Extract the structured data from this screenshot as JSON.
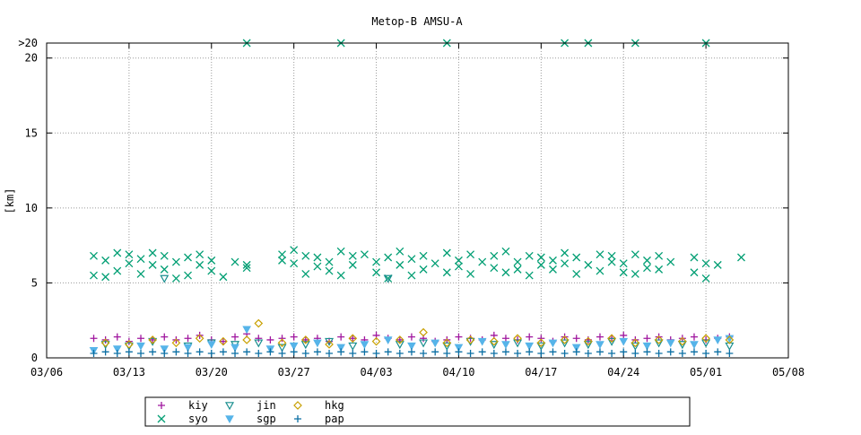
{
  "chart_data": {
    "type": "scatter",
    "title": "Metop-B AMSU-A",
    "xlabel": "",
    "ylabel": "[km]",
    "x_axis": {
      "type": "date",
      "range": [
        "03/06",
        "05/08"
      ],
      "tick_labels": [
        "03/06",
        "03/13",
        "03/20",
        "03/27",
        "04/03",
        "04/10",
        "04/17",
        "04/24",
        "05/01",
        "05/08"
      ]
    },
    "y_axis": {
      "range": [
        0,
        21
      ],
      "ticks": [
        0,
        5,
        10,
        15,
        20
      ],
      "tick_labels": [
        "0",
        "5",
        "10",
        "15",
        "20"
      ],
      "overflow_label": ">20"
    },
    "grid": true,
    "legend_position": "bottom",
    "series": [
      {
        "name": "kiy",
        "marker": "plus",
        "color": "#a0179f",
        "points": [
          [
            "03/10",
            1.3
          ],
          [
            "03/11",
            1.2
          ],
          [
            "03/12",
            1.4
          ],
          [
            "03/13",
            1.1
          ],
          [
            "03/14",
            1.3
          ],
          [
            "03/15",
            1.2
          ],
          [
            "03/16",
            1.4
          ],
          [
            "03/17",
            1.2
          ],
          [
            "03/18",
            1.3
          ],
          [
            "03/19",
            1.5
          ],
          [
            "03/20",
            1.2
          ],
          [
            "03/21",
            1.1
          ],
          [
            "03/22",
            1.4
          ],
          [
            "03/23",
            1.6
          ],
          [
            "03/24",
            1.3
          ],
          [
            "03/25",
            1.2
          ],
          [
            "03/26",
            1.3
          ],
          [
            "03/27",
            1.4
          ],
          [
            "03/28",
            1.2
          ],
          [
            "03/29",
            1.3
          ],
          [
            "03/30",
            1.1
          ],
          [
            "03/31",
            1.4
          ],
          [
            "04/01",
            1.3
          ],
          [
            "04/02",
            1.2
          ],
          [
            "04/03",
            1.5
          ],
          [
            "04/04",
            1.3
          ],
          [
            "04/05",
            1.2
          ],
          [
            "04/06",
            1.4
          ],
          [
            "04/07",
            1.3
          ],
          [
            "04/08",
            1.1
          ],
          [
            "04/09",
            1.2
          ],
          [
            "04/10",
            1.4
          ],
          [
            "04/11",
            1.3
          ],
          [
            "04/12",
            1.2
          ],
          [
            "04/13",
            1.5
          ],
          [
            "04/14",
            1.3
          ],
          [
            "04/15",
            1.2
          ],
          [
            "04/16",
            1.4
          ],
          [
            "04/17",
            1.3
          ],
          [
            "04/18",
            1.1
          ],
          [
            "04/19",
            1.4
          ],
          [
            "04/20",
            1.3
          ],
          [
            "04/21",
            1.2
          ],
          [
            "04/22",
            1.4
          ],
          [
            "04/23",
            1.3
          ],
          [
            "04/24",
            1.5
          ],
          [
            "04/25",
            1.2
          ],
          [
            "04/26",
            1.3
          ],
          [
            "04/27",
            1.4
          ],
          [
            "04/28",
            1.2
          ],
          [
            "04/29",
            1.3
          ],
          [
            "04/30",
            1.4
          ],
          [
            "05/01",
            1.2
          ],
          [
            "05/02",
            1.3
          ],
          [
            "05/03",
            1.4
          ]
        ]
      },
      {
        "name": "syo",
        "marker": "cross",
        "color": "#009e73",
        "points": [
          [
            "03/10",
            6.8
          ],
          [
            "03/10",
            5.5
          ],
          [
            "03/11",
            6.5
          ],
          [
            "03/11",
            5.4
          ],
          [
            "03/12",
            7.0
          ],
          [
            "03/12",
            5.8
          ],
          [
            "03/13",
            6.3
          ],
          [
            "03/13",
            6.9
          ],
          [
            "03/14",
            5.6
          ],
          [
            "03/14",
            6.6
          ],
          [
            "03/15",
            7.0
          ],
          [
            "03/15",
            6.2
          ],
          [
            "03/16",
            5.9
          ],
          [
            "03/16",
            6.8
          ],
          [
            "03/17",
            5.3
          ],
          [
            "03/17",
            6.4
          ],
          [
            "03/18",
            6.7
          ],
          [
            "03/18",
            5.5
          ],
          [
            "03/19",
            6.9
          ],
          [
            "03/19",
            6.2
          ],
          [
            "03/20",
            5.8
          ],
          [
            "03/20",
            6.5
          ],
          [
            "03/21",
            5.4
          ],
          [
            "03/22",
            6.4
          ],
          [
            "03/23",
            6.0
          ],
          [
            "03/23",
            6.2
          ],
          [
            "03/23",
            21
          ],
          [
            "03/26",
            6.9
          ],
          [
            "03/26",
            6.5
          ],
          [
            "03/27",
            7.2
          ],
          [
            "03/27",
            6.3
          ],
          [
            "03/28",
            5.6
          ],
          [
            "03/28",
            6.8
          ],
          [
            "03/29",
            6.1
          ],
          [
            "03/29",
            6.7
          ],
          [
            "03/30",
            5.8
          ],
          [
            "03/30",
            6.4
          ],
          [
            "03/31",
            7.1
          ],
          [
            "03/31",
            5.5
          ],
          [
            "03/31",
            21
          ],
          [
            "04/01",
            6.8
          ],
          [
            "04/01",
            6.2
          ],
          [
            "04/02",
            6.9
          ],
          [
            "04/03",
            5.7
          ],
          [
            "04/03",
            6.4
          ],
          [
            "04/04",
            6.7
          ],
          [
            "04/04",
            5.3
          ],
          [
            "04/05",
            7.1
          ],
          [
            "04/05",
            6.2
          ],
          [
            "04/06",
            5.5
          ],
          [
            "04/06",
            6.6
          ],
          [
            "04/07",
            6.8
          ],
          [
            "04/07",
            5.9
          ],
          [
            "04/08",
            6.3
          ],
          [
            "04/09",
            5.7
          ],
          [
            "04/09",
            7.0
          ],
          [
            "04/09",
            21
          ],
          [
            "04/10",
            6.5
          ],
          [
            "04/10",
            6.1
          ],
          [
            "04/11",
            6.9
          ],
          [
            "04/11",
            5.6
          ],
          [
            "04/12",
            6.4
          ],
          [
            "04/13",
            6.8
          ],
          [
            "04/13",
            6.0
          ],
          [
            "04/14",
            5.7
          ],
          [
            "04/14",
            7.1
          ],
          [
            "04/15",
            6.4
          ],
          [
            "04/15",
            5.9
          ],
          [
            "04/16",
            6.8
          ],
          [
            "04/16",
            5.5
          ],
          [
            "04/17",
            6.2
          ],
          [
            "04/17",
            6.7
          ],
          [
            "04/18",
            6.5
          ],
          [
            "04/18",
            5.9
          ],
          [
            "04/19",
            7.0
          ],
          [
            "04/19",
            6.3
          ],
          [
            "04/19",
            21
          ],
          [
            "04/20",
            5.6
          ],
          [
            "04/20",
            6.7
          ],
          [
            "04/21",
            6.2
          ],
          [
            "04/21",
            21
          ],
          [
            "04/22",
            6.9
          ],
          [
            "04/22",
            5.8
          ],
          [
            "04/23",
            6.4
          ],
          [
            "04/23",
            6.8
          ],
          [
            "04/24",
            5.7
          ],
          [
            "04/24",
            6.3
          ],
          [
            "04/25",
            6.9
          ],
          [
            "04/25",
            5.6
          ],
          [
            "04/25",
            21
          ],
          [
            "04/26",
            6.5
          ],
          [
            "04/26",
            6.0
          ],
          [
            "04/27",
            6.8
          ],
          [
            "04/27",
            5.9
          ],
          [
            "04/28",
            6.4
          ],
          [
            "04/30",
            6.7
          ],
          [
            "04/30",
            5.7
          ],
          [
            "05/01",
            6.3
          ],
          [
            "05/01",
            5.3
          ],
          [
            "05/01",
            21
          ],
          [
            "05/02",
            6.2
          ],
          [
            "05/04",
            6.7
          ]
        ]
      },
      {
        "name": "jin",
        "marker": "triangle-down-open",
        "color": "#1a8f8f",
        "points": [
          [
            "03/11",
            0.9
          ],
          [
            "03/13",
            0.8
          ],
          [
            "03/15",
            1.1
          ],
          [
            "03/16",
            5.3
          ],
          [
            "03/18",
            0.8
          ],
          [
            "03/20",
            1.0
          ],
          [
            "03/22",
            0.9
          ],
          [
            "03/24",
            1.0
          ],
          [
            "03/26",
            0.7
          ],
          [
            "03/28",
            0.9
          ],
          [
            "03/30",
            1.1
          ],
          [
            "04/01",
            0.8
          ],
          [
            "04/04",
            5.3
          ],
          [
            "04/05",
            0.9
          ],
          [
            "04/07",
            1.0
          ],
          [
            "04/09",
            0.8
          ],
          [
            "04/11",
            1.1
          ],
          [
            "04/13",
            0.9
          ],
          [
            "04/15",
            1.0
          ],
          [
            "04/17",
            0.8
          ],
          [
            "04/19",
            1.0
          ],
          [
            "04/21",
            0.9
          ],
          [
            "04/23",
            1.1
          ],
          [
            "04/25",
            0.8
          ],
          [
            "04/27",
            1.0
          ],
          [
            "04/29",
            0.9
          ],
          [
            "05/01",
            1.0
          ],
          [
            "05/03",
            0.8
          ]
        ]
      },
      {
        "name": "sgp",
        "marker": "triangle-down-filled",
        "color": "#56b4e9",
        "points": [
          [
            "03/10",
            0.5
          ],
          [
            "03/12",
            0.6
          ],
          [
            "03/14",
            0.8
          ],
          [
            "03/16",
            0.6
          ],
          [
            "03/18",
            0.7
          ],
          [
            "03/20",
            0.9
          ],
          [
            "03/22",
            0.7
          ],
          [
            "03/23",
            1.9
          ],
          [
            "03/25",
            0.6
          ],
          [
            "03/27",
            0.8
          ],
          [
            "03/29",
            1.0
          ],
          [
            "03/31",
            0.7
          ],
          [
            "04/02",
            0.9
          ],
          [
            "04/04",
            1.2
          ],
          [
            "04/06",
            0.8
          ],
          [
            "04/08",
            1.0
          ],
          [
            "04/10",
            0.7
          ],
          [
            "04/12",
            1.1
          ],
          [
            "04/14",
            0.9
          ],
          [
            "04/16",
            0.8
          ],
          [
            "04/18",
            1.0
          ],
          [
            "04/20",
            0.7
          ],
          [
            "04/22",
            0.9
          ],
          [
            "04/24",
            1.1
          ],
          [
            "04/26",
            0.8
          ],
          [
            "04/28",
            1.0
          ],
          [
            "04/30",
            0.9
          ],
          [
            "05/02",
            1.2
          ],
          [
            "05/03",
            1.3
          ]
        ]
      },
      {
        "name": "hkg",
        "marker": "diamond-open",
        "color": "#c8a000",
        "points": [
          [
            "03/11",
            1.0
          ],
          [
            "03/13",
            0.9
          ],
          [
            "03/15",
            1.2
          ],
          [
            "03/17",
            1.0
          ],
          [
            "03/19",
            1.3
          ],
          [
            "03/21",
            1.1
          ],
          [
            "03/23",
            1.2
          ],
          [
            "03/24",
            2.3
          ],
          [
            "03/26",
            1.0
          ],
          [
            "03/28",
            1.2
          ],
          [
            "03/30",
            0.9
          ],
          [
            "04/01",
            1.3
          ],
          [
            "04/03",
            1.1
          ],
          [
            "04/05",
            1.2
          ],
          [
            "04/07",
            1.7
          ],
          [
            "04/09",
            1.0
          ],
          [
            "04/11",
            1.2
          ],
          [
            "04/13",
            1.1
          ],
          [
            "04/15",
            1.3
          ],
          [
            "04/17",
            1.0
          ],
          [
            "04/19",
            1.2
          ],
          [
            "04/21",
            1.1
          ],
          [
            "04/23",
            1.3
          ],
          [
            "04/25",
            1.0
          ],
          [
            "04/27",
            1.2
          ],
          [
            "04/29",
            1.1
          ],
          [
            "05/01",
            1.3
          ],
          [
            "05/03",
            1.2
          ]
        ]
      },
      {
        "name": "pap",
        "marker": "plus",
        "color": "#0b6fa4",
        "points": [
          [
            "03/10",
            0.3
          ],
          [
            "03/11",
            0.4
          ],
          [
            "03/12",
            0.3
          ],
          [
            "03/13",
            0.4
          ],
          [
            "03/14",
            0.3
          ],
          [
            "03/15",
            0.4
          ],
          [
            "03/16",
            0.3
          ],
          [
            "03/17",
            0.4
          ],
          [
            "03/18",
            0.3
          ],
          [
            "03/19",
            0.4
          ],
          [
            "03/20",
            0.3
          ],
          [
            "03/21",
            0.4
          ],
          [
            "03/22",
            0.3
          ],
          [
            "03/23",
            0.4
          ],
          [
            "03/24",
            0.3
          ],
          [
            "03/25",
            0.4
          ],
          [
            "03/26",
            0.3
          ],
          [
            "03/27",
            0.4
          ],
          [
            "03/28",
            0.3
          ],
          [
            "03/29",
            0.4
          ],
          [
            "03/30",
            0.3
          ],
          [
            "03/31",
            0.4
          ],
          [
            "04/01",
            0.3
          ],
          [
            "04/02",
            0.4
          ],
          [
            "04/03",
            0.3
          ],
          [
            "04/04",
            0.4
          ],
          [
            "04/05",
            0.3
          ],
          [
            "04/06",
            0.4
          ],
          [
            "04/07",
            0.3
          ],
          [
            "04/08",
            0.4
          ],
          [
            "04/09",
            0.3
          ],
          [
            "04/10",
            0.4
          ],
          [
            "04/11",
            0.3
          ],
          [
            "04/12",
            0.4
          ],
          [
            "04/13",
            0.3
          ],
          [
            "04/14",
            0.4
          ],
          [
            "04/15",
            0.3
          ],
          [
            "04/16",
            0.4
          ],
          [
            "04/17",
            0.3
          ],
          [
            "04/18",
            0.4
          ],
          [
            "04/19",
            0.3
          ],
          [
            "04/20",
            0.4
          ],
          [
            "04/21",
            0.3
          ],
          [
            "04/22",
            0.4
          ],
          [
            "04/23",
            0.3
          ],
          [
            "04/24",
            0.4
          ],
          [
            "04/25",
            0.3
          ],
          [
            "04/26",
            0.4
          ],
          [
            "04/27",
            0.3
          ],
          [
            "04/28",
            0.4
          ],
          [
            "04/29",
            0.3
          ],
          [
            "04/30",
            0.4
          ],
          [
            "05/01",
            0.3
          ],
          [
            "05/02",
            0.4
          ],
          [
            "05/03",
            0.3
          ]
        ]
      }
    ]
  }
}
